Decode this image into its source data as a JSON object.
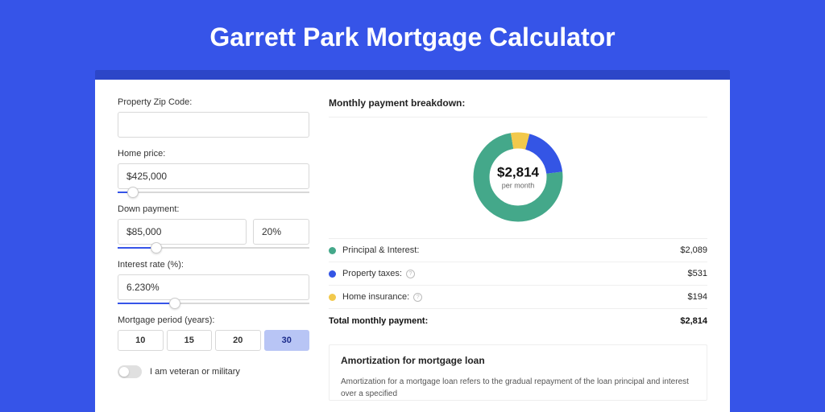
{
  "title": "Garrett Park Mortgage Calculator",
  "colors": {
    "page_bg": "#3654e8",
    "card_shadow": "#2c46c8",
    "accent": "#3654e8",
    "principal": "#44a88a",
    "taxes": "#3455e5",
    "insurance": "#f2c94c"
  },
  "form": {
    "zip_label": "Property Zip Code:",
    "zip_value": "",
    "price_label": "Home price:",
    "price_value": "$425,000",
    "price_slider_pct": 8,
    "down_label": "Down payment:",
    "down_value": "$85,000",
    "down_pct_value": "20%",
    "down_slider_pct": 20,
    "rate_label": "Interest rate (%):",
    "rate_value": "6.230%",
    "rate_slider_pct": 30,
    "period_label": "Mortgage period (years):",
    "periods": [
      "10",
      "15",
      "20",
      "30"
    ],
    "period_selected": "30",
    "veteran_label": "I am veteran or military"
  },
  "breakdown": {
    "title": "Monthly payment breakdown:",
    "donut_amount": "$2,814",
    "donut_sub": "per month",
    "slices": {
      "principal_pct": 74.2,
      "taxes_pct": 18.9,
      "insurance_pct": 6.9
    },
    "items": [
      {
        "label": "Principal & Interest:",
        "value": "$2,089",
        "color": "#44a88a",
        "help": false
      },
      {
        "label": "Property taxes:",
        "value": "$531",
        "color": "#3455e5",
        "help": true
      },
      {
        "label": "Home insurance:",
        "value": "$194",
        "color": "#f2c94c",
        "help": true
      }
    ],
    "total_label": "Total monthly payment:",
    "total_value": "$2,814"
  },
  "amort": {
    "title": "Amortization for mortgage loan",
    "text": "Amortization for a mortgage loan refers to the gradual repayment of the loan principal and interest over a specified"
  }
}
